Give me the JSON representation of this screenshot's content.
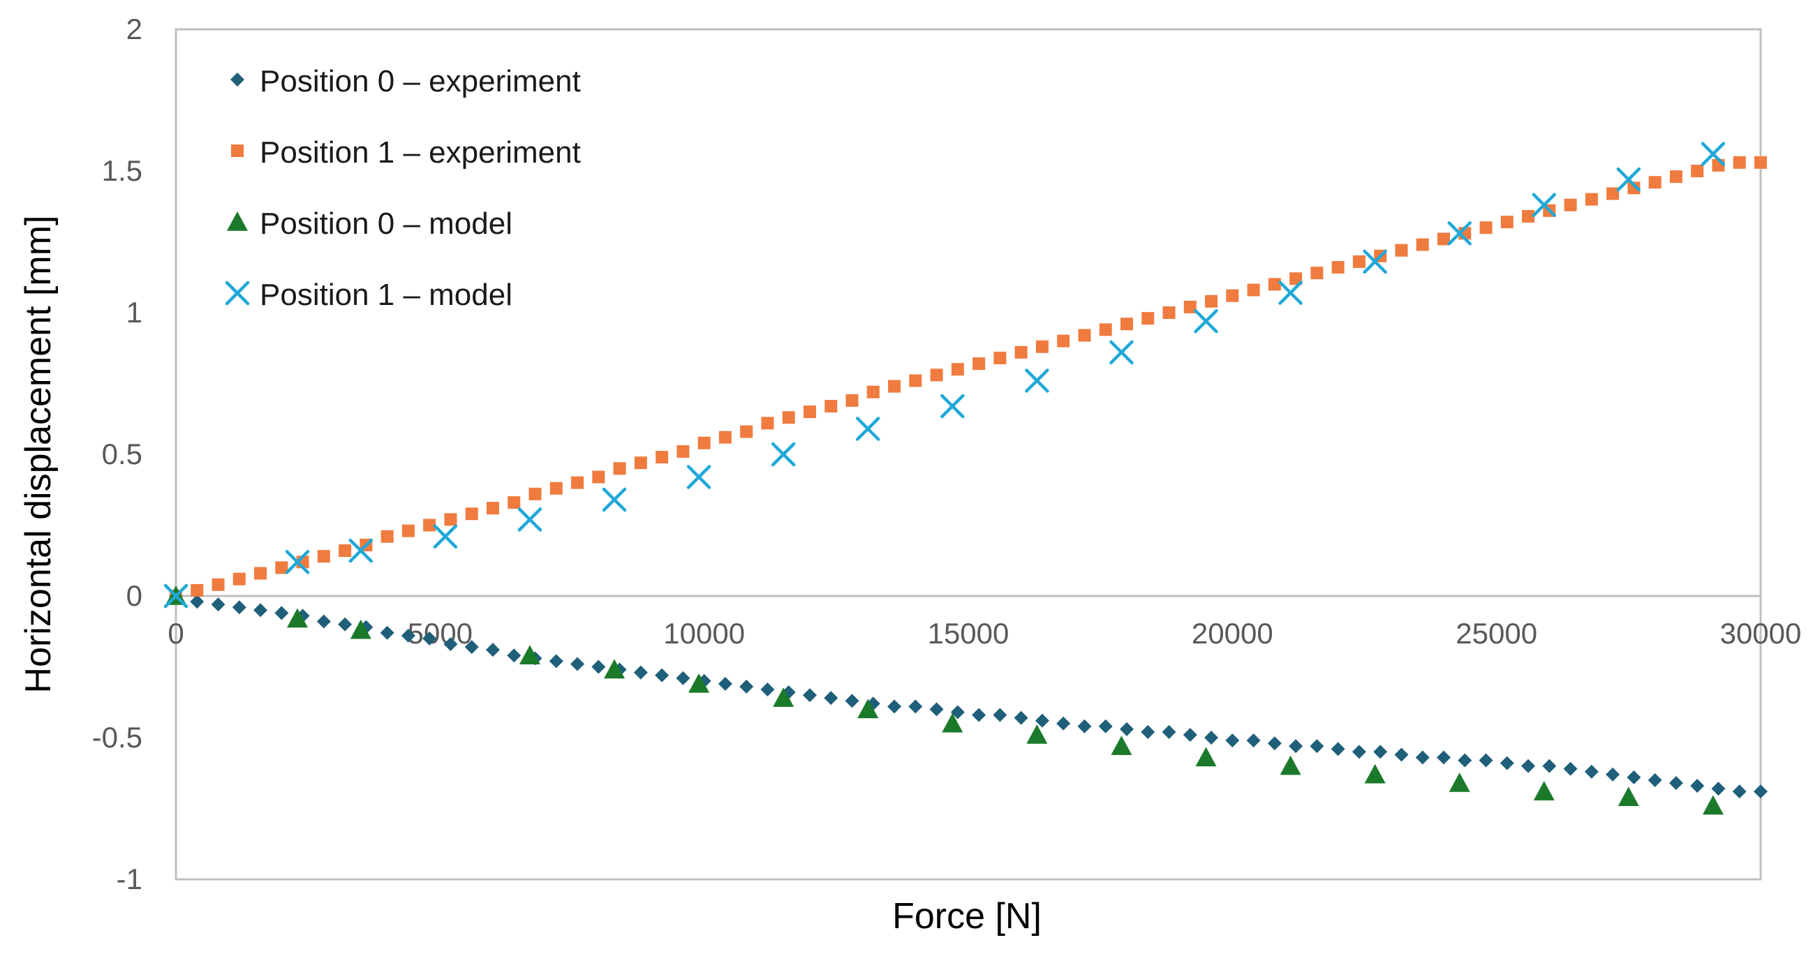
{
  "chart_data": {
    "type": "scatter",
    "title": "",
    "xlabel": "Force [N]",
    "ylabel": "Horizontal displacement [mm]",
    "xlim": [
      0,
      30000
    ],
    "ylim": [
      -1,
      2
    ],
    "x_ticks": [
      0,
      5000,
      10000,
      15000,
      20000,
      25000,
      30000
    ],
    "x_tick_labels": [
      "0",
      "5000",
      "10000",
      "15000",
      "20000",
      "25000",
      "30000"
    ],
    "y_ticks": [
      -1,
      -0.5,
      0,
      0.5,
      1,
      1.5,
      2
    ],
    "y_tick_labels": [
      "-1",
      "-0.5",
      "0",
      "0.5",
      "1",
      "1.5",
      "2"
    ],
    "grid": false,
    "legend_position": "top-left",
    "series": [
      {
        "name": "Position 0 – experiment",
        "marker": "diamond",
        "color": "#1f5f7a",
        "x": [
          0,
          400,
          800,
          1200,
          1600,
          2000,
          2400,
          2800,
          3200,
          3600,
          4000,
          4400,
          4800,
          5200,
          5600,
          6000,
          6400,
          6800,
          7200,
          7600,
          8000,
          8400,
          8800,
          9200,
          9600,
          10000,
          10400,
          10800,
          11200,
          11600,
          12000,
          12400,
          12800,
          13200,
          13600,
          14000,
          14400,
          14800,
          15200,
          15600,
          16000,
          16400,
          16800,
          17200,
          17600,
          18000,
          18400,
          18800,
          19200,
          19600,
          20000,
          20400,
          20800,
          21200,
          21600,
          22000,
          22400,
          22800,
          23200,
          23600,
          24000,
          24400,
          24800,
          25200,
          25600,
          26000,
          26400,
          26800,
          27200,
          27600,
          28000,
          28400,
          28800,
          29200,
          29600,
          30000
        ],
        "y": [
          0,
          -0.02,
          -0.03,
          -0.04,
          -0.05,
          -0.06,
          -0.07,
          -0.09,
          -0.1,
          -0.11,
          -0.13,
          -0.14,
          -0.15,
          -0.17,
          -0.18,
          -0.19,
          -0.21,
          -0.22,
          -0.23,
          -0.24,
          -0.25,
          -0.26,
          -0.27,
          -0.28,
          -0.29,
          -0.3,
          -0.31,
          -0.32,
          -0.33,
          -0.34,
          -0.35,
          -0.36,
          -0.37,
          -0.38,
          -0.39,
          -0.39,
          -0.4,
          -0.41,
          -0.42,
          -0.42,
          -0.43,
          -0.44,
          -0.45,
          -0.46,
          -0.46,
          -0.47,
          -0.48,
          -0.48,
          -0.49,
          -0.5,
          -0.51,
          -0.51,
          -0.52,
          -0.53,
          -0.53,
          -0.54,
          -0.55,
          -0.55,
          -0.56,
          -0.57,
          -0.57,
          -0.58,
          -0.58,
          -0.59,
          -0.6,
          -0.6,
          -0.61,
          -0.62,
          -0.63,
          -0.64,
          -0.65,
          -0.66,
          -0.67,
          -0.68,
          -0.69,
          -0.69
        ]
      },
      {
        "name": "Position 1 – experiment",
        "marker": "square",
        "color": "#f07b3f",
        "x": [
          0,
          400,
          800,
          1200,
          1600,
          2000,
          2400,
          2800,
          3200,
          3600,
          4000,
          4400,
          4800,
          5200,
          5600,
          6000,
          6400,
          6800,
          7200,
          7600,
          8000,
          8400,
          8800,
          9200,
          9600,
          10000,
          10400,
          10800,
          11200,
          11600,
          12000,
          12400,
          12800,
          13200,
          13600,
          14000,
          14400,
          14800,
          15200,
          15600,
          16000,
          16400,
          16800,
          17200,
          17600,
          18000,
          18400,
          18800,
          19200,
          19600,
          20000,
          20400,
          20800,
          21200,
          21600,
          22000,
          22400,
          22800,
          23200,
          23600,
          24000,
          24400,
          24800,
          25200,
          25600,
          26000,
          26400,
          26800,
          27200,
          27600,
          28000,
          28400,
          28800,
          29200,
          29600,
          30000
        ],
        "y": [
          0,
          0.02,
          0.04,
          0.06,
          0.08,
          0.1,
          0.12,
          0.14,
          0.16,
          0.18,
          0.21,
          0.23,
          0.25,
          0.27,
          0.29,
          0.31,
          0.33,
          0.36,
          0.38,
          0.4,
          0.42,
          0.45,
          0.47,
          0.49,
          0.51,
          0.54,
          0.56,
          0.58,
          0.61,
          0.63,
          0.65,
          0.67,
          0.69,
          0.72,
          0.74,
          0.76,
          0.78,
          0.8,
          0.82,
          0.84,
          0.86,
          0.88,
          0.9,
          0.92,
          0.94,
          0.96,
          0.98,
          1.0,
          1.02,
          1.04,
          1.06,
          1.08,
          1.1,
          1.12,
          1.14,
          1.16,
          1.18,
          1.2,
          1.22,
          1.24,
          1.26,
          1.28,
          1.3,
          1.32,
          1.34,
          1.36,
          1.38,
          1.4,
          1.42,
          1.44,
          1.46,
          1.48,
          1.5,
          1.52,
          1.53,
          1.53
        ]
      },
      {
        "name": "Position 0 – model",
        "marker": "triangle",
        "color": "#1b7a2a",
        "x": [
          0,
          2300,
          3500,
          6700,
          8300,
          9900,
          11500,
          13100,
          14700,
          16300,
          17900,
          19500,
          21100,
          22700,
          24300,
          25900,
          27500,
          29100
        ],
        "y": [
          0,
          -0.08,
          -0.12,
          -0.21,
          -0.26,
          -0.31,
          -0.36,
          -0.4,
          -0.45,
          -0.49,
          -0.53,
          -0.57,
          -0.6,
          -0.63,
          -0.66,
          -0.69,
          -0.71,
          -0.74
        ]
      },
      {
        "name": "Position 1 – model",
        "marker": "x",
        "color": "#1fa8d8",
        "x": [
          0,
          2300,
          3500,
          5100,
          6700,
          8300,
          9900,
          11500,
          13100,
          14700,
          16300,
          17900,
          19500,
          21100,
          22700,
          24300,
          25900,
          27500,
          29100
        ],
        "y": [
          0,
          0.12,
          0.16,
          0.21,
          0.27,
          0.34,
          0.42,
          0.5,
          0.59,
          0.67,
          0.76,
          0.86,
          0.97,
          1.07,
          1.18,
          1.28,
          1.38,
          1.47,
          1.56
        ]
      }
    ]
  }
}
